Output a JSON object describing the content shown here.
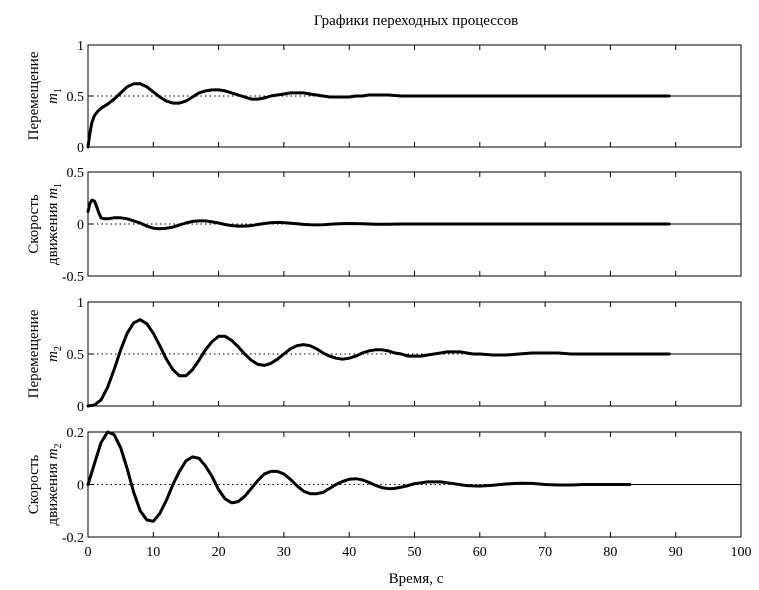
{
  "title": "Графики переходных процессов",
  "xlabel": "Время, с",
  "chart_data": [
    {
      "type": "line",
      "title": "Графики переходных процессов",
      "ylabel": {
        "line1": "Перемещение",
        "line2": "m",
        "sub": "1"
      },
      "xlim": [
        0,
        100
      ],
      "ylim": [
        0,
        1
      ],
      "yticks": [
        0,
        0.5,
        1
      ],
      "ytick_labels": [
        "0",
        "0.5",
        "1"
      ],
      "reference_line": 0.5,
      "series": [
        {
          "x": [
            0,
            0.3,
            0.6,
            1,
            1.5,
            2,
            3,
            4,
            5,
            6,
            7,
            8,
            9,
            10,
            11,
            12,
            13,
            14,
            15,
            16,
            17,
            18,
            19,
            20,
            21,
            22,
            23,
            24,
            25,
            26,
            27,
            28,
            29,
            30,
            31,
            32,
            33,
            34,
            35,
            36,
            37,
            38,
            39,
            40,
            41,
            42,
            43,
            44,
            45,
            46,
            48,
            50,
            52,
            54,
            56,
            58,
            60,
            62,
            64,
            66,
            68,
            70,
            72,
            74,
            76,
            78,
            80,
            82,
            84,
            86,
            88,
            89
          ],
          "y": [
            0.0,
            0.14,
            0.24,
            0.31,
            0.35,
            0.38,
            0.42,
            0.47,
            0.53,
            0.59,
            0.62,
            0.62,
            0.59,
            0.54,
            0.49,
            0.45,
            0.43,
            0.43,
            0.45,
            0.49,
            0.53,
            0.55,
            0.56,
            0.56,
            0.55,
            0.53,
            0.51,
            0.49,
            0.47,
            0.47,
            0.48,
            0.5,
            0.51,
            0.52,
            0.53,
            0.53,
            0.53,
            0.52,
            0.51,
            0.5,
            0.49,
            0.49,
            0.49,
            0.49,
            0.5,
            0.5,
            0.51,
            0.51,
            0.51,
            0.51,
            0.5,
            0.5,
            0.5,
            0.5,
            0.5,
            0.5,
            0.5,
            0.5,
            0.5,
            0.5,
            0.5,
            0.5,
            0.5,
            0.5,
            0.5,
            0.5,
            0.5,
            0.5,
            0.5,
            0.5,
            0.5,
            0.5
          ]
        }
      ]
    },
    {
      "type": "line",
      "ylabel": {
        "line1": "Скорость",
        "line2": "движения m",
        "sub": "1"
      },
      "xlim": [
        0,
        100
      ],
      "ylim": [
        -0.5,
        0.5
      ],
      "yticks": [
        -0.5,
        0,
        0.5
      ],
      "ytick_labels": [
        "-0.5",
        "0",
        "0.5"
      ],
      "reference_line": 0,
      "series": [
        {
          "x": [
            0,
            0.3,
            0.6,
            1,
            1.3,
            1.7,
            2,
            2.5,
            3,
            4,
            5,
            6,
            7,
            8,
            9,
            10,
            11,
            12,
            13,
            14,
            15,
            16,
            17,
            18,
            19,
            20,
            21,
            22,
            23,
            24,
            25,
            26,
            27,
            28,
            29,
            30,
            31,
            32,
            33,
            34,
            35,
            36,
            37,
            38,
            39,
            40,
            42,
            44,
            46,
            48,
            50,
            55,
            60,
            65,
            70,
            75,
            80,
            85,
            89
          ],
          "y": [
            0.12,
            0.2,
            0.23,
            0.22,
            0.17,
            0.1,
            0.06,
            0.05,
            0.05,
            0.06,
            0.06,
            0.05,
            0.03,
            0.01,
            -0.02,
            -0.04,
            -0.045,
            -0.04,
            -0.03,
            -0.01,
            0.01,
            0.025,
            0.03,
            0.03,
            0.02,
            0.01,
            -0.005,
            -0.015,
            -0.02,
            -0.02,
            -0.015,
            -0.005,
            0.005,
            0.012,
            0.015,
            0.013,
            0.008,
            0.002,
            -0.004,
            -0.008,
            -0.009,
            -0.007,
            -0.003,
            0.001,
            0.004,
            0.005,
            0.002,
            -0.002,
            -0.002,
            0.0,
            0.0,
            0.0,
            0.0,
            0.0,
            0.0,
            0.0,
            0.0,
            0.0,
            0.0
          ]
        }
      ]
    },
    {
      "type": "line",
      "ylabel": {
        "line1": "Перемещение",
        "line2": "m",
        "sub": "2"
      },
      "xlim": [
        0,
        100
      ],
      "ylim": [
        0,
        1
      ],
      "yticks": [
        0,
        0.5,
        1
      ],
      "ytick_labels": [
        "0",
        "0.5",
        "1"
      ],
      "reference_line": 0.5,
      "series": [
        {
          "x": [
            0,
            1,
            2,
            3,
            4,
            5,
            6,
            7,
            8,
            9,
            10,
            11,
            12,
            13,
            14,
            15,
            16,
            17,
            18,
            19,
            20,
            21,
            22,
            23,
            24,
            25,
            26,
            27,
            28,
            29,
            30,
            31,
            32,
            33,
            34,
            35,
            36,
            37,
            38,
            39,
            40,
            41,
            42,
            43,
            44,
            45,
            46,
            47,
            48,
            49,
            50,
            51,
            52,
            53,
            54,
            55,
            56,
            57,
            58,
            59,
            60,
            62,
            64,
            66,
            68,
            70,
            72,
            74,
            76,
            78,
            80,
            82,
            84,
            86,
            88,
            89
          ],
          "y": [
            0.0,
            0.01,
            0.06,
            0.18,
            0.35,
            0.54,
            0.7,
            0.8,
            0.83,
            0.79,
            0.7,
            0.58,
            0.45,
            0.35,
            0.29,
            0.29,
            0.35,
            0.44,
            0.54,
            0.62,
            0.67,
            0.67,
            0.63,
            0.57,
            0.5,
            0.44,
            0.4,
            0.39,
            0.41,
            0.45,
            0.5,
            0.55,
            0.58,
            0.59,
            0.58,
            0.55,
            0.51,
            0.48,
            0.46,
            0.45,
            0.46,
            0.48,
            0.51,
            0.53,
            0.54,
            0.54,
            0.53,
            0.51,
            0.5,
            0.48,
            0.48,
            0.48,
            0.49,
            0.5,
            0.51,
            0.52,
            0.52,
            0.52,
            0.51,
            0.5,
            0.5,
            0.49,
            0.49,
            0.5,
            0.51,
            0.51,
            0.51,
            0.5,
            0.5,
            0.5,
            0.5,
            0.5,
            0.5,
            0.5,
            0.5,
            0.5
          ]
        }
      ]
    },
    {
      "type": "line",
      "ylabel": {
        "line1": "Скорость",
        "line2": "движения m",
        "sub": "2"
      },
      "xlim": [
        0,
        100
      ],
      "ylim": [
        -0.2,
        0.2
      ],
      "yticks": [
        -0.2,
        0,
        0.2
      ],
      "ytick_labels": [
        "-0.2",
        "0",
        "0.2"
      ],
      "reference_line": 0,
      "xticks": [
        0,
        10,
        20,
        30,
        40,
        50,
        60,
        70,
        80,
        90,
        100
      ],
      "xtick_labels": [
        "0",
        "10",
        "20",
        "30",
        "40",
        "50",
        "60",
        "70",
        "80",
        "90",
        "100"
      ],
      "xlabel": "Время, с",
      "series": [
        {
          "x": [
            0,
            1,
            2,
            3,
            4,
            5,
            6,
            7,
            8,
            9,
            10,
            11,
            12,
            13,
            14,
            15,
            16,
            17,
            18,
            19,
            20,
            21,
            22,
            23,
            24,
            25,
            26,
            27,
            28,
            29,
            30,
            31,
            32,
            33,
            34,
            35,
            36,
            37,
            38,
            39,
            40,
            41,
            42,
            43,
            44,
            45,
            46,
            47,
            48,
            49,
            50,
            52,
            54,
            56,
            58,
            60,
            62,
            64,
            66,
            68,
            70,
            72,
            74,
            76,
            78,
            80,
            82,
            83
          ],
          "y": [
            0.0,
            0.08,
            0.16,
            0.2,
            0.19,
            0.14,
            0.06,
            -0.03,
            -0.1,
            -0.135,
            -0.14,
            -0.11,
            -0.06,
            0.0,
            0.05,
            0.09,
            0.105,
            0.1,
            0.07,
            0.03,
            -0.02,
            -0.055,
            -0.07,
            -0.065,
            -0.045,
            -0.015,
            0.015,
            0.04,
            0.05,
            0.05,
            0.04,
            0.02,
            -0.005,
            -0.025,
            -0.035,
            -0.035,
            -0.03,
            -0.015,
            0.0,
            0.012,
            0.02,
            0.022,
            0.018,
            0.008,
            -0.003,
            -0.012,
            -0.016,
            -0.015,
            -0.01,
            -0.004,
            0.003,
            0.01,
            0.01,
            0.003,
            -0.004,
            -0.006,
            -0.003,
            0.002,
            0.005,
            0.004,
            0.0,
            -0.002,
            -0.002,
            0.0,
            0.0,
            0.0,
            0.0,
            0.0
          ]
        }
      ]
    }
  ]
}
